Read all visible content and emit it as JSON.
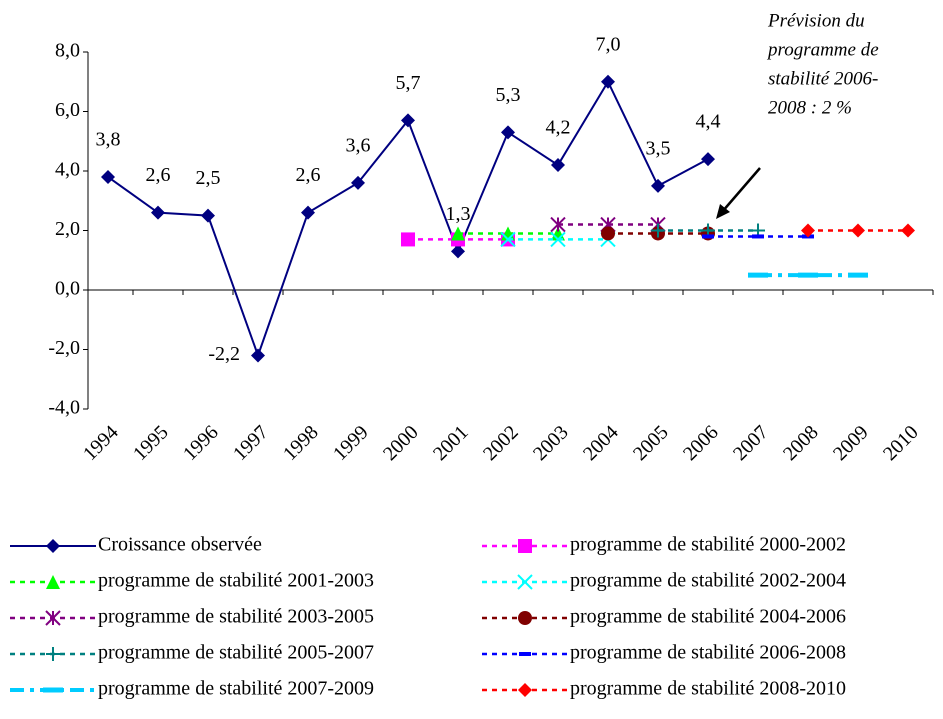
{
  "chart_data": {
    "type": "line",
    "categories": [
      "1994",
      "1995",
      "1996",
      "1997",
      "1998",
      "1999",
      "2000",
      "2001",
      "2002",
      "2003",
      "2004",
      "2005",
      "2006",
      "2007",
      "2008",
      "2009",
      "2010"
    ],
    "ylim": [
      -4,
      8
    ],
    "yticks": [
      {
        "value": -4,
        "label": "-4,0"
      },
      {
        "value": -2,
        "label": "-2,0"
      },
      {
        "value": 0,
        "label": "0,0"
      },
      {
        "value": 2,
        "label": "2,0"
      },
      {
        "value": 4,
        "label": "4,0"
      },
      {
        "value": 6,
        "label": "6,0"
      },
      {
        "value": 8,
        "label": "8,0"
      }
    ],
    "annotation": [
      "Prévision du",
      "programme de",
      "stabilité 2006-",
      "2008 : 2 %"
    ],
    "series": [
      {
        "name": "Croissance observée",
        "color": "#000080",
        "marker": "diamond",
        "dash": "solid",
        "values": [
          3.8,
          2.6,
          2.5,
          -2.2,
          2.6,
          3.6,
          5.7,
          1.3,
          5.3,
          4.2,
          7.0,
          3.5,
          4.4,
          null,
          null,
          null,
          null
        ],
        "value_labels": [
          "3,8",
          "2,6",
          "2,5",
          "-2,2",
          "2,6",
          "3,6",
          "5,7",
          "1,3",
          "5,3",
          "4,2",
          "7,0",
          "3,5",
          "4,4",
          null,
          null,
          null,
          null
        ]
      },
      {
        "name": "programme de stabilité 2000-2002",
        "color": "#ff00ff",
        "marker": "square",
        "dash": "dash",
        "values": [
          null,
          null,
          null,
          null,
          null,
          null,
          1.7,
          1.7,
          1.7,
          null,
          null,
          null,
          null,
          null,
          null,
          null,
          null
        ]
      },
      {
        "name": "programme de stabilité 2001-2003",
        "color": "#00ff00",
        "marker": "triangle",
        "dash": "dash",
        "values": [
          null,
          null,
          null,
          null,
          null,
          null,
          null,
          1.9,
          1.9,
          1.9,
          null,
          null,
          null,
          null,
          null,
          null,
          null
        ]
      },
      {
        "name": "programme de stabilité 2002-2004",
        "color": "#00ffff",
        "marker": "x",
        "dash": "dash",
        "values": [
          null,
          null,
          null,
          null,
          null,
          null,
          null,
          null,
          1.7,
          1.7,
          1.7,
          null,
          null,
          null,
          null,
          null,
          null
        ]
      },
      {
        "name": "programme de stabilité 2003-2005",
        "color": "#800080",
        "marker": "asterisk",
        "dash": "dash",
        "values": [
          null,
          null,
          null,
          null,
          null,
          null,
          null,
          null,
          null,
          2.2,
          2.2,
          2.2,
          null,
          null,
          null,
          null,
          null
        ]
      },
      {
        "name": "programme de stabilité 2004-2006",
        "color": "#800000",
        "marker": "circle",
        "dash": "dash",
        "values": [
          null,
          null,
          null,
          null,
          null,
          null,
          null,
          null,
          null,
          null,
          1.9,
          1.9,
          1.9,
          null,
          null,
          null,
          null
        ]
      },
      {
        "name": "programme de stabilité 2005-2007",
        "color": "#008080",
        "marker": "plus",
        "dash": "dash",
        "values": [
          null,
          null,
          null,
          null,
          null,
          null,
          null,
          null,
          null,
          null,
          null,
          2.0,
          2.0,
          2.0,
          null,
          null,
          null
        ]
      },
      {
        "name": "programme de stabilité 2006-2008",
        "color": "#0000ff",
        "marker": "dash",
        "dash": "dash",
        "values": [
          null,
          null,
          null,
          null,
          null,
          null,
          null,
          null,
          null,
          null,
          null,
          null,
          1.8,
          1.8,
          1.8,
          null,
          null
        ]
      },
      {
        "name": "programme de stabilité 2007-2009",
        "color": "#00ccff",
        "marker": "bar",
        "dash": "dashdot",
        "values": [
          null,
          null,
          null,
          null,
          null,
          null,
          null,
          null,
          null,
          null,
          null,
          null,
          null,
          0.5,
          0.5,
          0.5,
          null
        ]
      },
      {
        "name": "programme de stabilité 2008-2010",
        "color": "#ff0000",
        "marker": "diamond",
        "dash": "dash",
        "values": [
          null,
          null,
          null,
          null,
          null,
          null,
          null,
          null,
          null,
          null,
          null,
          null,
          null,
          null,
          2.0,
          2.0,
          2.0
        ]
      }
    ]
  }
}
